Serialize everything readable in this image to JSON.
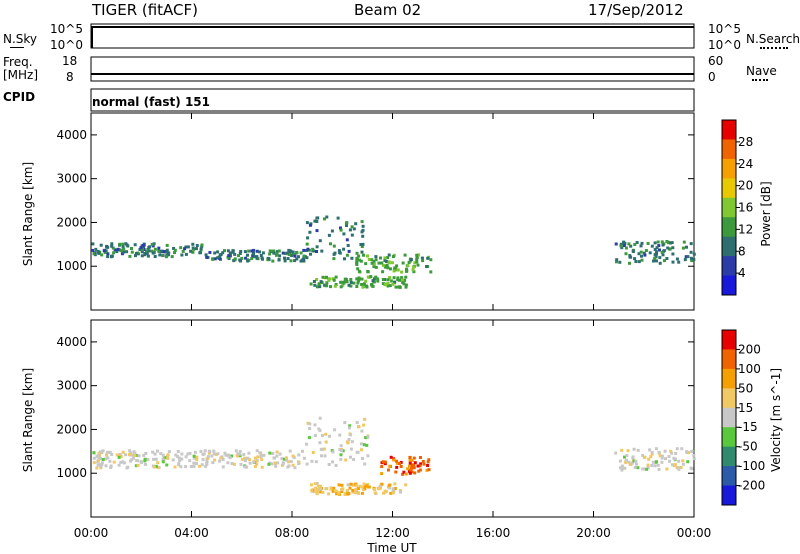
{
  "header": {
    "title": "TIGER (fitACF)",
    "beam": "Beam 02",
    "date": "17/Sep/2012"
  },
  "rows": {
    "nsky_label": "N.Sky",
    "nsearch_label": "N.Search",
    "freq_label": "Freq.",
    "freq_unit": "[MHz]",
    "nave_label": "Nave",
    "cpid_label": "CPID",
    "cpid_value": "normal (fast) 151",
    "nsky_ticks": [
      "10^5",
      "10^0"
    ],
    "nsearch_ticks": [
      "10^5",
      "10^0"
    ],
    "freq_ticks": [
      "18",
      "8"
    ],
    "nave_ticks": [
      "60",
      "0"
    ]
  },
  "chart_data": [
    {
      "type": "heatmap",
      "name": "power",
      "ylabel": "Slant Range [km]",
      "ylim": [
        0,
        4500
      ],
      "yticks": [
        "4000",
        "3000",
        "2000",
        "1000"
      ],
      "xlabel": "Time UT",
      "xticks": [
        "00:00",
        "04:00",
        "08:00",
        "12:00",
        "16:00",
        "20:00",
        "00:00"
      ],
      "xlim_hours": [
        0,
        24
      ],
      "colorbar": {
        "label": "Power [dB]",
        "ticks": [
          "28",
          "24",
          "20",
          "16",
          "12",
          "8",
          "4"
        ],
        "range": [
          0,
          32
        ],
        "colors": [
          "#1919dc",
          "#2a3ca8",
          "#2f6e6e",
          "#3c9a3c",
          "#7fc832",
          "#e8c800",
          "#f5a000",
          "#f06400",
          "#e60000"
        ]
      },
      "echo_regions": [
        {
          "from_h": 0.0,
          "to_h": 4.5,
          "range_lo": 1250,
          "range_hi": 1550,
          "level": 2
        },
        {
          "from_h": 4.5,
          "to_h": 8.5,
          "range_lo": 1150,
          "range_hi": 1400,
          "level": 2
        },
        {
          "from_h": 8.5,
          "to_h": 10.8,
          "range_lo": 1200,
          "range_hi": 2200,
          "level": 2
        },
        {
          "from_h": 8.7,
          "to_h": 12.5,
          "range_lo": 550,
          "range_hi": 800,
          "level": 3
        },
        {
          "from_h": 10.5,
          "to_h": 13.5,
          "range_lo": 900,
          "range_hi": 1300,
          "level": 3
        },
        {
          "from_h": 20.8,
          "to_h": 24.0,
          "range_lo": 1100,
          "range_hi": 1600,
          "level": 2
        }
      ]
    },
    {
      "type": "heatmap",
      "name": "velocity",
      "ylabel": "Slant Range [km]",
      "ylim": [
        0,
        4500
      ],
      "yticks": [
        "4000",
        "3000",
        "2000",
        "1000"
      ],
      "xlabel": "Time UT",
      "xticks": [
        "00:00",
        "04:00",
        "08:00",
        "12:00",
        "16:00",
        "20:00",
        "00:00"
      ],
      "xlim_hours": [
        0,
        24
      ],
      "colorbar": {
        "label": "Velocity [m s^-1]",
        "ticks": [
          "200",
          "100",
          "50",
          "15",
          "-15",
          "-50",
          "-100",
          "-200"
        ],
        "colors": [
          "#1919dc",
          "#2a5aa8",
          "#2f8a6e",
          "#5ac83c",
          "#c8c8c8",
          "#f0c864",
          "#f5a000",
          "#f06400",
          "#e60000"
        ]
      },
      "echo_regions": [
        {
          "from_h": 0.0,
          "to_h": 8.5,
          "range_lo": 1150,
          "range_hi": 1550,
          "level": 4
        },
        {
          "from_h": 8.5,
          "to_h": 11.0,
          "range_lo": 1200,
          "range_hi": 2300,
          "level": 4
        },
        {
          "from_h": 8.7,
          "to_h": 12.5,
          "range_lo": 550,
          "range_hi": 800,
          "level": 5
        },
        {
          "from_h": 11.5,
          "to_h": 13.5,
          "range_lo": 1000,
          "range_hi": 1400,
          "level": 7
        },
        {
          "from_h": 20.8,
          "to_h": 24.0,
          "range_lo": 1100,
          "range_hi": 1600,
          "level": 4
        }
      ]
    }
  ]
}
